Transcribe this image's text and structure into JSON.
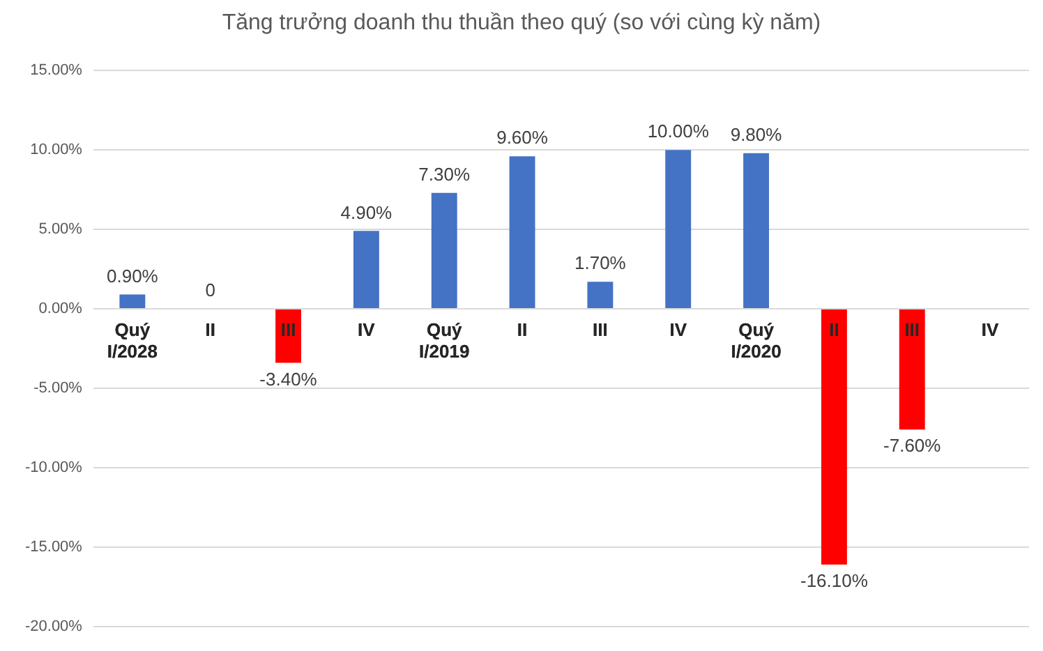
{
  "chart_data": {
    "type": "bar",
    "title": "Tăng trưởng doanh thu thuần theo quý (so với cùng kỳ năm)",
    "categories": [
      "Quý I/2028",
      "II",
      "III",
      "IV",
      "Quý I/2019",
      "II",
      "III",
      "IV",
      "Quý I/2020",
      "II",
      "III",
      "IV"
    ],
    "values": [
      0.9,
      0,
      -3.4,
      4.9,
      7.3,
      9.6,
      1.7,
      10.0,
      9.8,
      -16.1,
      -7.6,
      null
    ],
    "colors": [
      "#4472c4",
      "#4472c4",
      "#ff0000",
      "#4472c4",
      "#4472c4",
      "#4472c4",
      "#4472c4",
      "#4472c4",
      "#4472c4",
      "#ff0000",
      "#ff0000",
      "#4472c4"
    ],
    "value_labels": [
      "0.90%",
      "0",
      "-3.40%",
      "4.90%",
      "7.30%",
      "9.60%",
      "1.70%",
      "10.00%",
      "9.80%",
      "-16.10%",
      "-7.60%",
      null
    ],
    "ylim": [
      -20,
      15
    ],
    "yticks": [
      {
        "value": -20,
        "label": "-20.00%"
      },
      {
        "value": -15,
        "label": "-15.00%"
      },
      {
        "value": -10,
        "label": "-10.00%"
      },
      {
        "value": -5,
        "label": "-5.00%"
      },
      {
        "value": 0,
        "label": "0.00%"
      },
      {
        "value": 5,
        "label": "5.00%"
      },
      {
        "value": 10,
        "label": "10.00%"
      },
      {
        "value": 15,
        "label": "15.00%"
      }
    ],
    "grid": "y"
  }
}
